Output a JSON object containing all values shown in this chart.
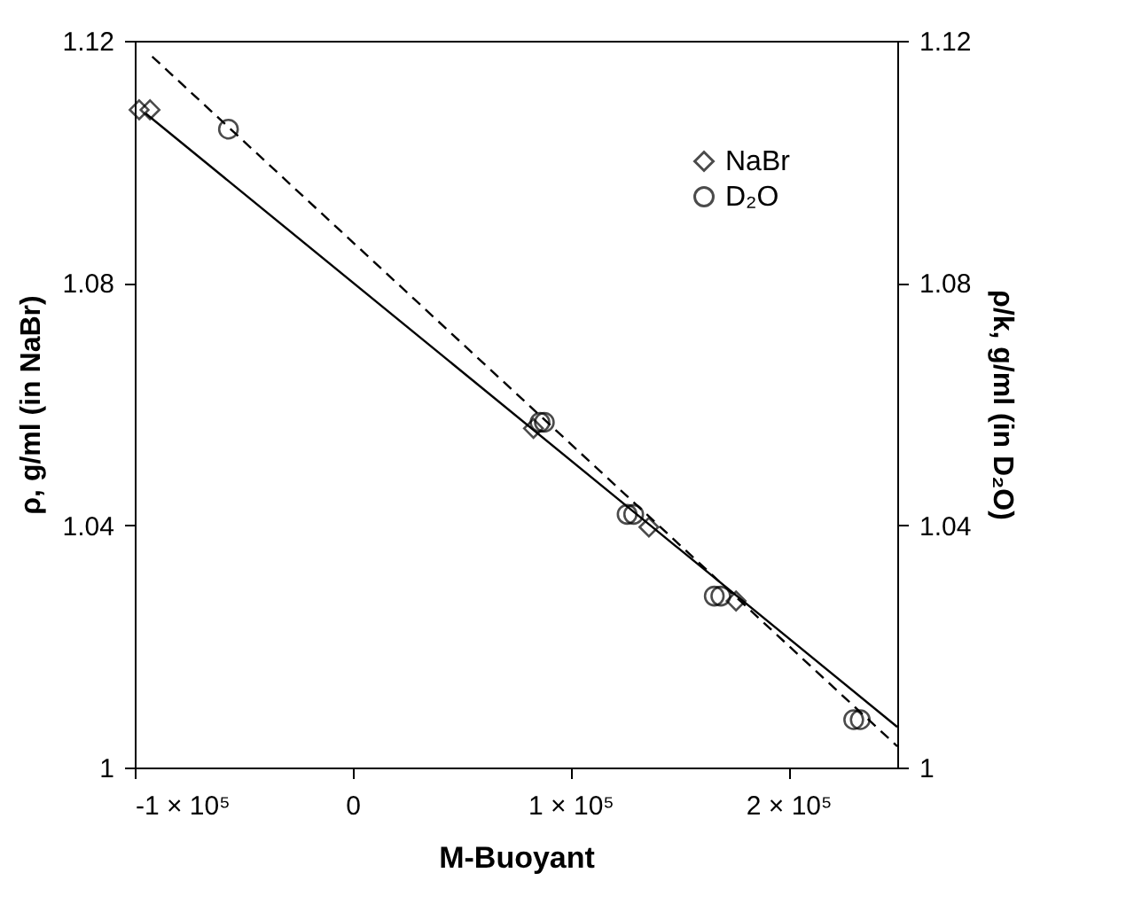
{
  "chart_data": {
    "type": "scatter",
    "xlabel": "M-Buoyant",
    "ylabel": "ρ, g/ml (in NaBr)",
    "y2label": "ρ/k, g/ml (in D₂O)",
    "xlim": [
      -100000,
      250000
    ],
    "xticks": [
      {
        "value": -100000,
        "label": "-1 × 10⁵"
      },
      {
        "value": 0,
        "label": "0"
      },
      {
        "value": 100000,
        "label": "1 × 10⁵"
      },
      {
        "value": 200000,
        "label": "2 × 10⁵"
      }
    ],
    "ylim": [
      1,
      1.12
    ],
    "yticks": [
      1,
      1.04,
      1.08,
      1.12
    ],
    "y2lim": [
      1,
      1.12
    ],
    "y2ticks": [
      1,
      1.04,
      1.08,
      1.12
    ],
    "legend": "top right",
    "grid": false,
    "series": [
      {
        "name": "NaBr",
        "marker": "diamond",
        "color": "#000000",
        "x": [
          -98000,
          -93000,
          83000,
          136000,
          176000
        ],
        "values": [
          1.1086,
          1.1086,
          1.056,
          1.0397,
          1.0275
        ]
      },
      {
        "name": "D₂O",
        "marker": "circle",
        "axis": "y2",
        "color": "#000000",
        "x": [
          -57000,
          86000,
          88000,
          126000,
          129000,
          166000,
          169000,
          230000,
          233000
        ],
        "values": [
          1.1054,
          1.057,
          1.057,
          1.0418,
          1.0418,
          1.0283,
          1.0283,
          1.0079,
          1.0079
        ]
      },
      {
        "type": "line",
        "line_style": "solid",
        "color": "#000000",
        "x": [
          -95000,
          250000
        ],
        "values": [
          1.108,
          1.0067
        ]
      },
      {
        "type": "line",
        "line_style": "dashed",
        "axis": "y2",
        "color": "#000000",
        "x": [
          -92000,
          250000
        ],
        "values": [
          1.1174,
          1.0035
        ]
      }
    ]
  }
}
